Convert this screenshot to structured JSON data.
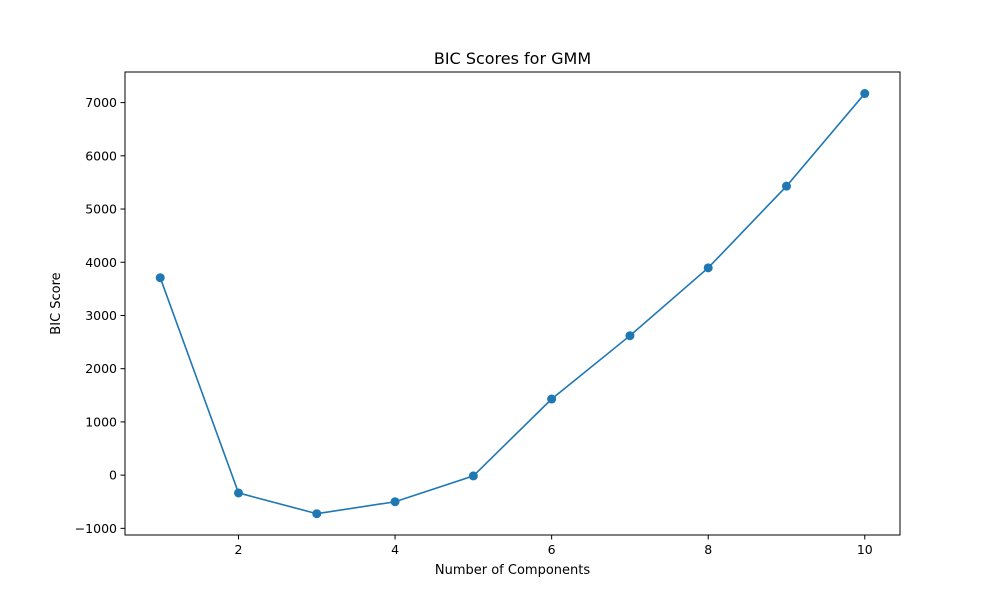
{
  "chart_data": {
    "type": "line",
    "title": "BIC Scores for GMM",
    "xlabel": "Number of Components",
    "ylabel": "BIC Score",
    "xlim": [
      0.55,
      10.45
    ],
    "ylim": [
      -1125,
      7575
    ],
    "xticks": [
      2,
      4,
      6,
      8,
      10
    ],
    "yticks": [
      -1000,
      0,
      1000,
      2000,
      3000,
      4000,
      5000,
      6000,
      7000
    ],
    "ytick_labels": [
      "−1000",
      "0",
      "1000",
      "2000",
      "3000",
      "4000",
      "5000",
      "6000",
      "7000"
    ],
    "grid": false,
    "marker": "circle",
    "series": [
      {
        "color": "#1f77b4",
        "x": [
          1,
          2,
          3,
          4,
          5,
          6,
          7,
          8,
          9,
          10
        ],
        "y": [
          3710,
          -335,
          -725,
          -500,
          -15,
          1430,
          2620,
          3895,
          5430,
          7170
        ]
      }
    ]
  }
}
